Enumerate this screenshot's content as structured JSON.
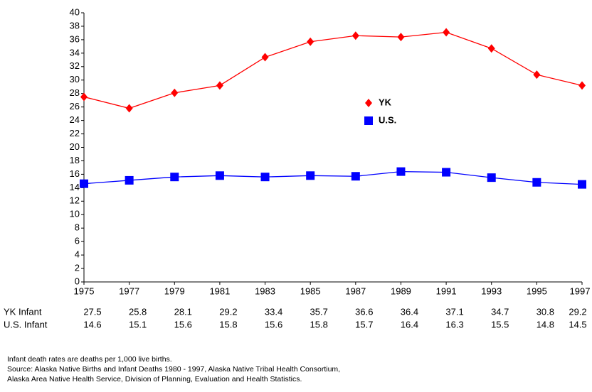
{
  "chart_data": {
    "type": "line",
    "x": [
      1975,
      1977,
      1979,
      1981,
      1983,
      1985,
      1987,
      1989,
      1991,
      1993,
      1995,
      1997
    ],
    "series": [
      {
        "name": "YK",
        "color": "#ff0000",
        "marker": "diamond",
        "values": [
          27.5,
          25.8,
          28.1,
          29.2,
          33.4,
          35.7,
          36.6,
          36.4,
          37.1,
          34.7,
          30.8,
          29.2
        ]
      },
      {
        "name": "U.S.",
        "color": "#0000ff",
        "marker": "square",
        "values": [
          14.6,
          15.1,
          15.6,
          15.8,
          15.6,
          15.8,
          15.7,
          16.4,
          16.3,
          15.5,
          14.8,
          14.5
        ]
      }
    ],
    "xlim": [
      1975,
      1997
    ],
    "xticks": [
      1975,
      1977,
      1979,
      1981,
      1983,
      1985,
      1987,
      1989,
      1991,
      1993,
      1995,
      1997
    ],
    "ylim": [
      0,
      40
    ],
    "yticks": [
      0,
      2,
      4,
      6,
      8,
      10,
      12,
      14,
      16,
      18,
      20,
      22,
      24,
      26,
      28,
      30,
      32,
      34,
      36,
      38,
      40
    ],
    "grid": false,
    "table_row_labels": [
      "YK Infant",
      "U.S. Infant"
    ],
    "notes": [
      "Infant death rates are deaths per 1,000 live births.",
      "Source: Alaska Native Births and Infant Deaths 1980 - 1997, Alaska Native Tribal Health Consortium,",
      "Alaska Area Native Health Service, Division of Planning, Evaluation and Health Statistics."
    ]
  }
}
